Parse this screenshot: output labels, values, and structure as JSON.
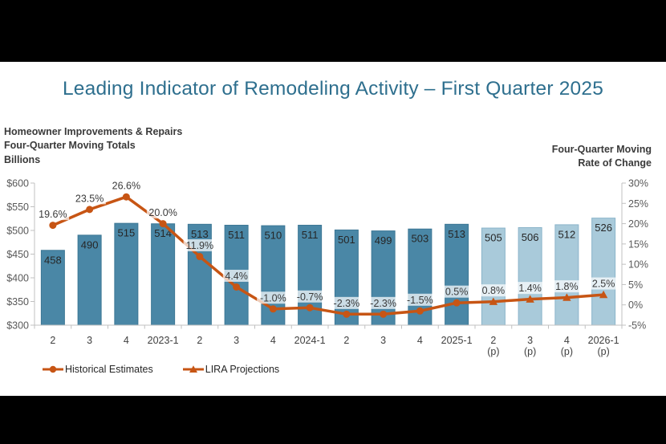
{
  "title": "Leading Indicator of Remodeling Activity – First Quarter 2025",
  "axis_titles": {
    "left": [
      "Homeowner Improvements & Repairs",
      "Four-Quarter Moving Totals",
      "Billions"
    ],
    "right": [
      "Four-Quarter Moving",
      "Rate of Change"
    ]
  },
  "legend": {
    "items": [
      {
        "label": "Historical Estimates",
        "marker": "circle-on-line-icon"
      },
      {
        "label": "LIRA Projections",
        "marker": "triangle-on-line-icon"
      }
    ]
  },
  "colors": {
    "title": "#2e6f8e",
    "historical_bar": "#4a87a6",
    "historical_bar_stroke": "#3c7795",
    "projection_bar": "#a9cada",
    "projection_bar_stroke": "#8ab4ca",
    "line": "#c75514",
    "axis_line": "#c0c0c0",
    "tick_label": "#595959",
    "bar_label": "#262626",
    "pct_label": "#3a3a3a",
    "x_label": "#404040"
  },
  "chart_data": {
    "type": "bar",
    "subtype": "bar-and-line-combo",
    "categories": [
      "2",
      "3",
      "4",
      "2023-1",
      "2",
      "3",
      "4",
      "2024-1",
      "2",
      "3",
      "4",
      "2025-1",
      "2",
      "3",
      "4",
      "2026-1"
    ],
    "projection_start_index": 12,
    "projection_suffix": "(p)",
    "series": [
      {
        "name": "Four-Quarter Moving Totals (Billions)",
        "type": "bar",
        "axis": "left",
        "values": [
          458,
          490,
          515,
          514,
          513,
          511,
          510,
          511,
          501,
          499,
          503,
          513,
          505,
          506,
          512,
          526
        ]
      },
      {
        "name": "Four-Quarter Moving Rate of Change",
        "type": "line",
        "axis": "right",
        "values": [
          19.6,
          23.5,
          26.6,
          20.0,
          11.9,
          4.4,
          -1.0,
          -0.7,
          -2.3,
          -2.3,
          -1.5,
          0.5,
          0.8,
          1.4,
          1.8,
          2.5
        ],
        "labels": [
          "19.6%",
          "23.5%",
          "26.6%",
          "20.0%",
          "11.9%",
          "4.4%",
          "-1.0%",
          "-0.7%",
          "-2.3%",
          "-2.3%",
          "-1.5%",
          "0.5%",
          "0.8%",
          "1.4%",
          "1.8%",
          "2.5%"
        ]
      }
    ],
    "left_axis": {
      "min": 300,
      "max": 600,
      "tick_labels": [
        "$600",
        "$550",
        "$500",
        "$450",
        "$400",
        "$350",
        "$300"
      ]
    },
    "right_axis": {
      "min": -5,
      "max": 30,
      "tick_labels": [
        "30%",
        "25%",
        "20%",
        "15%",
        "10%",
        "5%",
        "0%",
        "-5%"
      ]
    },
    "grid": false,
    "legend_position": "bottom-left"
  }
}
